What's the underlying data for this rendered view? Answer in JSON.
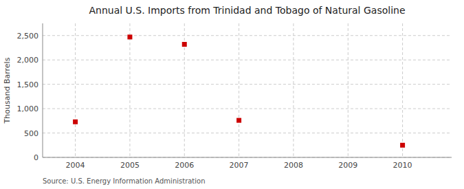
{
  "chart_data": {
    "type": "scatter",
    "title": "Annual U.S. Imports from Trinidad and Tobago of Natural Gasoline",
    "ylabel": "Thousand Barrels",
    "annotations": [
      "Source: U.S. Energy Information Administration"
    ],
    "x": [
      2004,
      2005,
      2006,
      2007,
      2008,
      2009,
      2010
    ],
    "values": [
      730,
      2470,
      2320,
      760,
      null,
      null,
      250
    ],
    "xlim": [
      2003.4,
      2010.9
    ],
    "ylim": [
      0,
      2750
    ],
    "xticks": [
      2004,
      2005,
      2006,
      2007,
      2008,
      2009,
      2010
    ],
    "yticks": [
      0,
      500,
      {
        "value": 1000,
        "label": "1,000"
      },
      {
        "value": 1500,
        "label": "1,500"
      },
      {
        "value": 2000,
        "label": "2,000"
      },
      {
        "value": 2500,
        "label": "2,500"
      }
    ],
    "color": "#cc0000",
    "marker": "square",
    "grid": true
  }
}
